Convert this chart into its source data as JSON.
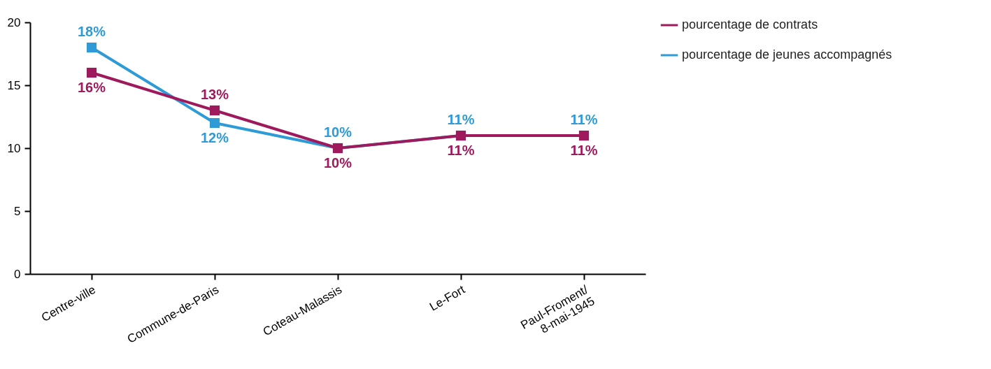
{
  "chart_data": {
    "type": "line",
    "categories": [
      "Centre-ville",
      "Commune-de-Paris",
      "Coteau-Malassis",
      "Le-Fort",
      "Paul-Froment/\n8-mai-1945"
    ],
    "series": [
      {
        "name": "pourcentage de contrats",
        "color": "#9e1a5c",
        "values": [
          16,
          13,
          10,
          11,
          11
        ],
        "value_labels": [
          "16%",
          "13%",
          "10%",
          "11%",
          "11%"
        ]
      },
      {
        "name": "pourcentage de jeunes accompagnés",
        "color": "#2e9bd6",
        "values": [
          18,
          12,
          10,
          11,
          11
        ],
        "value_labels": [
          "18%",
          "12%",
          "10%",
          "11%",
          "11%"
        ]
      }
    ],
    "ylim": [
      0,
      20
    ],
    "yticks": [
      0,
      5,
      10,
      15,
      20
    ],
    "grid": false,
    "legend": "top right",
    "marker": "square",
    "line_style": "solid"
  }
}
